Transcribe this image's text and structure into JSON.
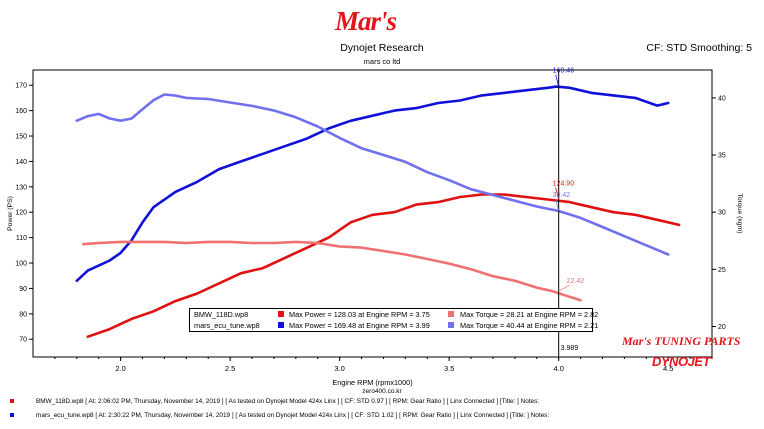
{
  "header": {
    "logo_text": "Mar's",
    "title": "Dynojet Research",
    "subtitle": "mars co ltd",
    "correction": "CF: STD Smoothing: 5"
  },
  "colors": {
    "power1": "#e01010",
    "power2": "#1010d8",
    "torque1": "#f07070",
    "torque2": "#7070f0",
    "brand": "#e3141a"
  },
  "chart_data": {
    "type": "line",
    "xlabel": "Engine RPM (rpmx1000)",
    "ylabel_left": "Power (PS)",
    "ylabel_right": "Torque (kgm)",
    "xlim": [
      1.6,
      4.7
    ],
    "ylim_left": [
      63,
      176
    ],
    "ylim_right": [
      17.33,
      42.44
    ],
    "x_ticks": [
      "2.0",
      "2.5",
      "3.0",
      "3.5",
      "4.0",
      "4.5"
    ],
    "y_ticks_left": [
      "70",
      "80",
      "90",
      "100",
      "110",
      "120",
      "130",
      "140",
      "150",
      "160",
      "170"
    ],
    "y_ticks_right": [
      "20",
      "25",
      "30",
      "35",
      "40"
    ],
    "grid": false,
    "series": [
      {
        "name": "BMW_118D.wp8 Power",
        "axis": "left",
        "x": [
          1.85,
          1.95,
          2.05,
          2.15,
          2.25,
          2.35,
          2.45,
          2.55,
          2.65,
          2.75,
          2.85,
          2.95,
          3.05,
          3.15,
          3.25,
          3.35,
          3.45,
          3.55,
          3.65,
          3.75,
          3.85,
          3.95,
          4.05,
          4.15,
          4.25,
          4.35,
          4.45,
          4.55
        ],
        "y": [
          71,
          74,
          78,
          81,
          85,
          88,
          92,
          96,
          98,
          102,
          106,
          110,
          116,
          119,
          120,
          123,
          124,
          126,
          127,
          127,
          126,
          125,
          124,
          122,
          120,
          119,
          117,
          115
        ]
      },
      {
        "name": "mars_ecu_tune.wp8 Power",
        "axis": "left",
        "x": [
          1.8,
          1.85,
          1.95,
          2.0,
          2.05,
          2.1,
          2.15,
          2.25,
          2.35,
          2.45,
          2.55,
          2.65,
          2.75,
          2.85,
          2.95,
          3.05,
          3.15,
          3.25,
          3.35,
          3.45,
          3.55,
          3.65,
          3.75,
          3.85,
          3.95,
          3.99,
          4.05,
          4.15,
          4.25,
          4.35,
          4.45,
          4.5
        ],
        "y": [
          93,
          97,
          101,
          104,
          109,
          116,
          122,
          128,
          132,
          137,
          140,
          143,
          146,
          149,
          153,
          156,
          158,
          160,
          161,
          163,
          164,
          166,
          167,
          168,
          169,
          169.46,
          169,
          167,
          166,
          165,
          162,
          163
        ]
      },
      {
        "name": "BMW_118D.wp8 Torque",
        "axis": "right",
        "x": [
          1.83,
          1.9,
          2.0,
          2.1,
          2.2,
          2.3,
          2.4,
          2.5,
          2.6,
          2.7,
          2.8,
          2.9,
          3.0,
          3.1,
          3.2,
          3.3,
          3.4,
          3.5,
          3.6,
          3.7,
          3.8,
          3.9,
          3.97,
          4.05,
          4.1
        ],
        "y": [
          27.2,
          27.3,
          27.4,
          27.4,
          27.4,
          27.3,
          27.4,
          27.4,
          27.3,
          27.3,
          27.4,
          27.3,
          27.0,
          26.9,
          26.6,
          26.3,
          25.9,
          25.5,
          25.0,
          24.4,
          24.0,
          23.4,
          23.1,
          22.6,
          22.3
        ]
      },
      {
        "name": "mars_ecu_tune.wp8 Torque",
        "axis": "right",
        "x": [
          1.8,
          1.85,
          1.9,
          1.95,
          2.0,
          2.05,
          2.1,
          2.15,
          2.2,
          2.25,
          2.3,
          2.4,
          2.5,
          2.6,
          2.7,
          2.8,
          2.9,
          3.0,
          3.1,
          3.2,
          3.3,
          3.4,
          3.5,
          3.6,
          3.7,
          3.8,
          3.9,
          4.0,
          4.1,
          4.2,
          4.3,
          4.4,
          4.5
        ],
        "y": [
          38.0,
          38.4,
          38.6,
          38.2,
          38.0,
          38.2,
          39.0,
          39.8,
          40.3,
          40.2,
          40.0,
          39.9,
          39.6,
          39.3,
          38.9,
          38.3,
          37.5,
          36.5,
          35.6,
          35.0,
          34.4,
          33.5,
          32.8,
          32.0,
          31.5,
          31.0,
          30.5,
          30.1,
          29.5,
          28.7,
          27.9,
          27.1,
          26.3
        ]
      }
    ],
    "marker": {
      "x": 4.0,
      "label": "3.989"
    },
    "annotations": [
      {
        "text": "169.46",
        "series": 1
      },
      {
        "text": "124.90",
        "series": 0
      },
      {
        "text": "30.42",
        "series": 3
      },
      {
        "text": "22.42",
        "series": 2
      }
    ],
    "legend": [
      {
        "file": "BMW_118D.wp8",
        "power": "Max Power = 128.03 at Engine RPM = 3.75",
        "torque": "Max Torque = 28.21 at Engine RPM = 2.82"
      },
      {
        "file": "mars_ecu_tune.wp8",
        "power": "Max Power = 169.48 at Engine RPM = 3.99",
        "torque": "Max Torque = 40.44 at Engine RPM = 2.21"
      }
    ],
    "watermark": "Mar's TUNING PARTS",
    "brand_mark": "DYNOJET",
    "website": "zero400.co.kr"
  },
  "footer": {
    "run1": "BMW_118D.wp8 [ At: 2:06:02 PM, Thursday, November 14, 2019 ] [ As tested on Dynojet Model 424x Linx ] [ CF: STD 0.97 ] [ RPM: Gear Ratio ] [ Linx Connected ] [Title: ]  Notes:",
    "run2": "mars_ecu_tune.wp8 [ At: 2:30:22 PM, Thursday, November 14, 2019 ] [ As tested on Dynojet Model 424x Linx ] [ CF: STD 1.02 ] [ RPM: Gear Ratio ] [ Linx Connected ] [Title: ]  Notes:"
  }
}
